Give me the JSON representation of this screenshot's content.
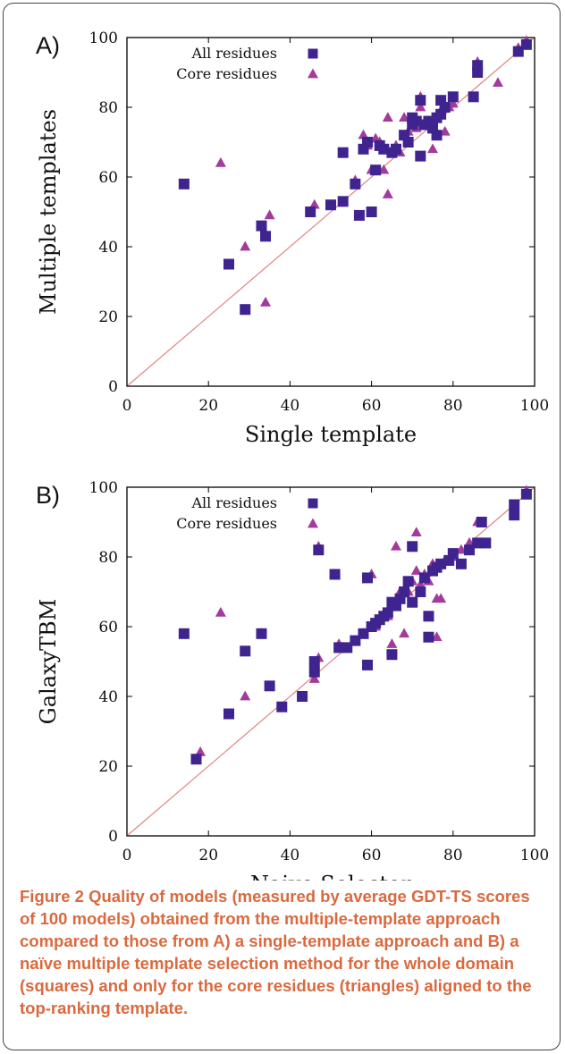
{
  "caption": {
    "label": "Figure 2",
    "text": "Quality of models (measured by average GDT-TS scores of 100 models) obtained from the multiple-template approach compared to those from A) a single-template approach and B) a naïve multiple template selection method for the whole domain (squares) and only for the core residues (triangles) aligned to the top-ranking template."
  },
  "colors": {
    "square": "#3f2490",
    "triangle": "#a23b9c",
    "diagonal": "#e08585",
    "axis": "#000000"
  },
  "chart_data": [
    {
      "type": "scatter",
      "panel": "A)",
      "xlabel": "Single template",
      "ylabel": "Multiple templates",
      "xlim": [
        0,
        100
      ],
      "ylim": [
        0,
        100
      ],
      "xticks": [
        0,
        20,
        40,
        60,
        80,
        100
      ],
      "yticks": [
        0,
        20,
        40,
        60,
        80,
        100
      ],
      "grid": false,
      "legend_position": "top-left",
      "diagonal": [
        [
          0,
          0
        ],
        [
          100,
          100
        ]
      ],
      "series": [
        {
          "name": "All residues",
          "marker": "square",
          "points": [
            [
              14,
              58
            ],
            [
              25,
              35
            ],
            [
              29,
              22
            ],
            [
              34,
              43
            ],
            [
              33,
              46
            ],
            [
              45,
              50
            ],
            [
              50,
              52
            ],
            [
              53,
              53
            ],
            [
              53,
              67
            ],
            [
              56,
              58
            ],
            [
              57,
              49
            ],
            [
              58,
              68
            ],
            [
              59,
              70
            ],
            [
              60,
              50
            ],
            [
              61,
              62
            ],
            [
              62,
              69
            ],
            [
              63,
              68
            ],
            [
              65,
              67
            ],
            [
              66,
              68
            ],
            [
              68,
              72
            ],
            [
              69,
              70
            ],
            [
              70,
              75
            ],
            [
              70,
              77
            ],
            [
              71,
              76
            ],
            [
              72,
              66
            ],
            [
              72,
              82
            ],
            [
              73,
              75
            ],
            [
              74,
              76
            ],
            [
              75,
              74
            ],
            [
              76,
              72
            ],
            [
              76,
              77
            ],
            [
              77,
              78
            ],
            [
              77,
              82
            ],
            [
              78,
              80
            ],
            [
              80,
              83
            ],
            [
              85,
              83
            ],
            [
              86,
              92
            ],
            [
              86,
              90
            ],
            [
              96,
              96
            ],
            [
              98,
              98
            ]
          ]
        },
        {
          "name": "Core residues",
          "marker": "triangle",
          "points": [
            [
              23,
              64
            ],
            [
              29,
              40
            ],
            [
              35,
              49
            ],
            [
              34,
              24
            ],
            [
              46,
              52
            ],
            [
              56,
              59
            ],
            [
              58,
              72
            ],
            [
              59,
              69
            ],
            [
              60,
              62
            ],
            [
              61,
              71
            ],
            [
              62,
              70
            ],
            [
              63,
              62
            ],
            [
              64,
              77
            ],
            [
              64,
              55
            ],
            [
              66,
              69
            ],
            [
              67,
              67
            ],
            [
              68,
              77
            ],
            [
              69,
              73
            ],
            [
              71,
              74
            ],
            [
              72,
              80
            ],
            [
              72,
              83
            ],
            [
              74,
              76
            ],
            [
              75,
              68
            ],
            [
              76,
              77
            ],
            [
              77,
              79
            ],
            [
              78,
              73
            ],
            [
              79,
              80
            ],
            [
              80,
              81
            ],
            [
              86,
              90
            ],
            [
              86,
              93
            ],
            [
              91,
              87
            ],
            [
              96,
              97
            ],
            [
              98,
              99
            ]
          ]
        }
      ]
    },
    {
      "type": "scatter",
      "panel": "B)",
      "xlabel": "Naive Selector",
      "ylabel": "GalaxyTBM",
      "xlim": [
        0,
        100
      ],
      "ylim": [
        0,
        100
      ],
      "xticks": [
        0,
        20,
        40,
        60,
        80,
        100
      ],
      "yticks": [
        0,
        20,
        40,
        60,
        80,
        100
      ],
      "grid": false,
      "legend_position": "top-left",
      "diagonal": [
        [
          0,
          0
        ],
        [
          100,
          100
        ]
      ],
      "series": [
        {
          "name": "All residues",
          "marker": "square",
          "points": [
            [
              14,
              58
            ],
            [
              17,
              22
            ],
            [
              25,
              35
            ],
            [
              29,
              53
            ],
            [
              33,
              58
            ],
            [
              35,
              43
            ],
            [
              38,
              37
            ],
            [
              43,
              40
            ],
            [
              46,
              47
            ],
            [
              46,
              50
            ],
            [
              47,
              82
            ],
            [
              51,
              75
            ],
            [
              52,
              54
            ],
            [
              54,
              54
            ],
            [
              56,
              56
            ],
            [
              58,
              58
            ],
            [
              59,
              49
            ],
            [
              59,
              74
            ],
            [
              60,
              60
            ],
            [
              61,
              61
            ],
            [
              62,
              62
            ],
            [
              63,
              63
            ],
            [
              64,
              64
            ],
            [
              65,
              52
            ],
            [
              65,
              67
            ],
            [
              66,
              66
            ],
            [
              67,
              68
            ],
            [
              68,
              70
            ],
            [
              69,
              73
            ],
            [
              70,
              67
            ],
            [
              70,
              83
            ],
            [
              72,
              70
            ],
            [
              73,
              74
            ],
            [
              74,
              63
            ],
            [
              74,
              57
            ],
            [
              75,
              76
            ],
            [
              76,
              77
            ],
            [
              77,
              78
            ],
            [
              79,
              79
            ],
            [
              80,
              81
            ],
            [
              82,
              78
            ],
            [
              84,
              82
            ],
            [
              86,
              84
            ],
            [
              88,
              84
            ],
            [
              87,
              90
            ],
            [
              95,
              95
            ],
            [
              95,
              92
            ],
            [
              98,
              98
            ]
          ]
        },
        {
          "name": "Core residues",
          "marker": "triangle",
          "points": [
            [
              18,
              24
            ],
            [
              23,
              64
            ],
            [
              29,
              40
            ],
            [
              33,
              58
            ],
            [
              46,
              49
            ],
            [
              47,
              51
            ],
            [
              46,
              45
            ],
            [
              47,
              83
            ],
            [
              51,
              75
            ],
            [
              52,
              55
            ],
            [
              56,
              56
            ],
            [
              58,
              58
            ],
            [
              60,
              75
            ],
            [
              61,
              60
            ],
            [
              62,
              62
            ],
            [
              64,
              63
            ],
            [
              65,
              66
            ],
            [
              65,
              55
            ],
            [
              66,
              83
            ],
            [
              67,
              70
            ],
            [
              68,
              58
            ],
            [
              69,
              70
            ],
            [
              70,
              73
            ],
            [
              71,
              87
            ],
            [
              71,
              76
            ],
            [
              72,
              72
            ],
            [
              73,
              75
            ],
            [
              74,
              73
            ],
            [
              75,
              78
            ],
            [
              76,
              57
            ],
            [
              76,
              68
            ],
            [
              77,
              68
            ],
            [
              78,
              79
            ],
            [
              80,
              80
            ],
            [
              82,
              82
            ],
            [
              84,
              84
            ],
            [
              86,
              90
            ],
            [
              88,
              84
            ],
            [
              95,
              93
            ],
            [
              98,
              99
            ]
          ]
        }
      ]
    }
  ]
}
